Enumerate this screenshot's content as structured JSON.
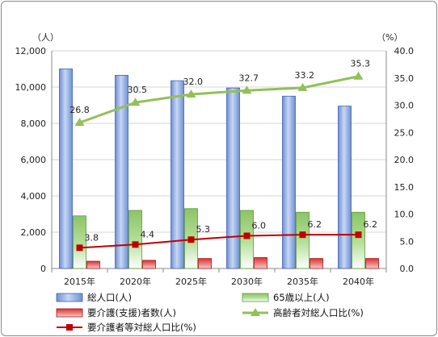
{
  "chart_data": {
    "type": "bar",
    "categories": [
      "2015年",
      "2020年",
      "2025年",
      "2030年",
      "2035年",
      "2040年"
    ],
    "y_left": {
      "unit": "（人）",
      "min": 0,
      "max": 12000,
      "ticks": [
        "0",
        "2,000",
        "4,000",
        "6,000",
        "8,000",
        "10,000",
        "12,000"
      ]
    },
    "y_right": {
      "unit": "（%）",
      "min": 0,
      "max": 40,
      "ticks": [
        "0.0",
        "5.0",
        "10.0",
        "15.0",
        "20.0",
        "25.0",
        "30.0",
        "35.0",
        "40.0"
      ]
    },
    "grid": true,
    "legend_position": "bottom",
    "series": [
      {
        "name": "総人口(人)",
        "type": "bar",
        "axis": "left",
        "color": "#a9c1ec",
        "values": [
          11000,
          10650,
          10350,
          9950,
          9500,
          8950
        ]
      },
      {
        "name": "65歳以上(人)",
        "type": "bar",
        "axis": "left",
        "color": "#9fd37a",
        "values": [
          2900,
          3200,
          3300,
          3200,
          3100,
          3100
        ]
      },
      {
        "name": "要介護(支援)者数(人)",
        "type": "bar",
        "axis": "left",
        "color": "#e05050",
        "values": [
          400,
          450,
          550,
          600,
          550,
          550
        ]
      },
      {
        "name": "高齢者対総人口比(%)",
        "type": "line",
        "axis": "right",
        "color": "#92c05a",
        "marker": "triangle",
        "values": [
          26.8,
          30.5,
          32.0,
          32.7,
          33.2,
          35.3
        ],
        "labels": [
          "26.8",
          "30.5",
          "32.0",
          "32.7",
          "33.2",
          "35.3"
        ]
      },
      {
        "name": "要介護者等対総人口比(%)",
        "type": "line",
        "axis": "right",
        "color": "#c00000",
        "marker": "square",
        "values": [
          3.8,
          4.4,
          5.3,
          6.0,
          6.2,
          6.2
        ],
        "labels": [
          "3.8",
          "4.4",
          "5.3",
          "6.0",
          "6.2",
          "6.2"
        ]
      }
    ]
  }
}
